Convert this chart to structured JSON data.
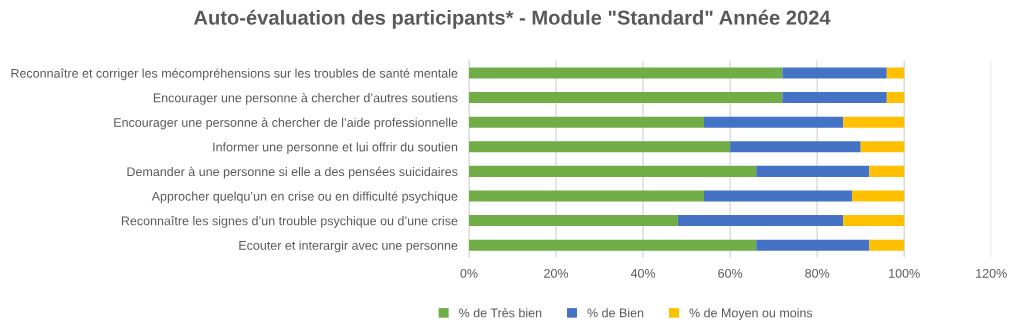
{
  "chart_data": {
    "type": "bar",
    "orientation": "horizontal",
    "stacked": true,
    "title": "Auto-évaluation des participants* - Module \"Standard\" Année 2024",
    "categories": [
      "Reconnaître et corriger les mécompréhensions sur les troubles de santé mentale",
      "Encourager une personne à chercher d’autres soutiens",
      "Encourager une personne à chercher de l’aide professionnelle",
      "Informer une personne et lui offrir du soutien",
      "Demander à une personne si elle a des pensées suicidaires",
      "Approcher quelqu’un en crise ou en difficulté psychique",
      "Reconnaître les signes d’un trouble psychique ou d’une crise",
      "Ecouter et interargir avec une personne"
    ],
    "series": [
      {
        "name": "% de Très bien",
        "color": "#70ad47",
        "values": [
          72,
          72,
          54,
          60,
          66,
          54,
          48,
          66
        ]
      },
      {
        "name": "% de Bien",
        "color": "#4472c4",
        "values": [
          24,
          24,
          32,
          30,
          26,
          34,
          38,
          26
        ]
      },
      {
        "name": "% de Moyen ou moins",
        "color": "#ffc000",
        "values": [
          4,
          4,
          14,
          10,
          8,
          12,
          14,
          8
        ]
      }
    ],
    "xlim": [
      0,
      120
    ],
    "xticks": [
      {
        "value": 0,
        "label": "0%"
      },
      {
        "value": 20,
        "label": "20%"
      },
      {
        "value": 40,
        "label": "40%"
      },
      {
        "value": 60,
        "label": "60%"
      },
      {
        "value": 80,
        "label": "80%"
      },
      {
        "value": 100,
        "label": "100%"
      },
      {
        "value": 120,
        "label": "120%"
      }
    ],
    "grid": "x",
    "legend": "bottom"
  }
}
